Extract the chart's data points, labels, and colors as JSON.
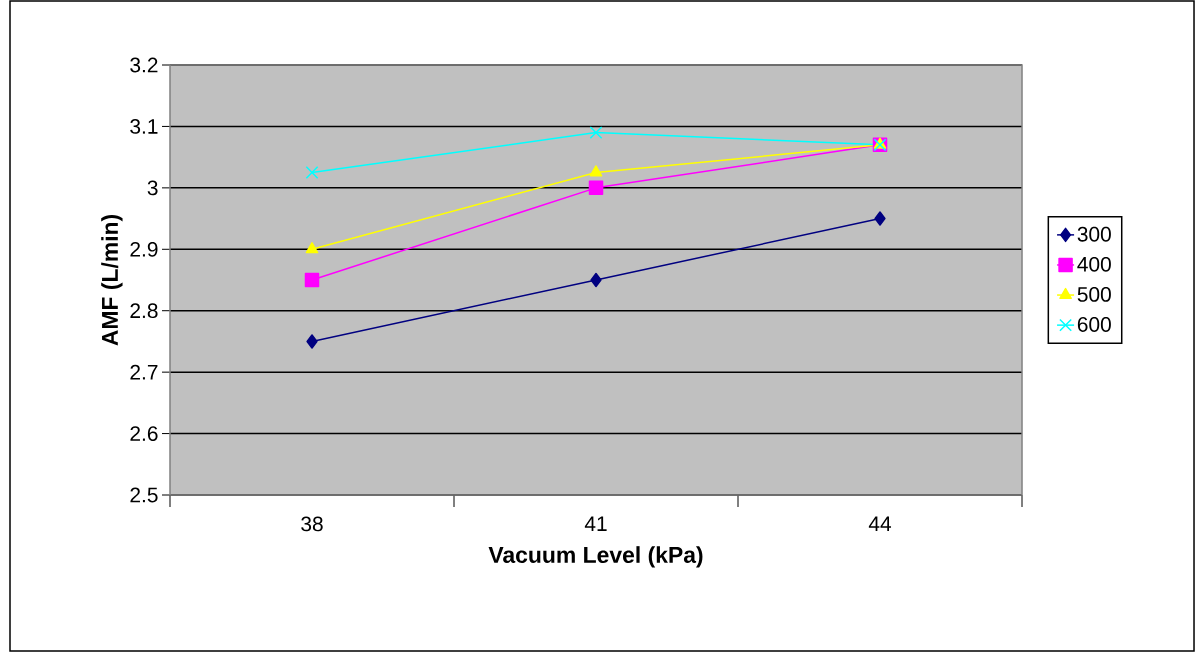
{
  "chart_data": {
    "type": "line",
    "xlabel": "Vacuum Level (kPa)",
    "ylabel": "AMF (L/min)",
    "categories": [
      "38",
      "41",
      "44"
    ],
    "series": [
      {
        "name": "300",
        "color": "#000080",
        "marker": "diamond",
        "values": [
          2.75,
          2.85,
          2.95
        ]
      },
      {
        "name": "400",
        "color": "#ff00ff",
        "marker": "square",
        "values": [
          2.85,
          3.0,
          3.07
        ]
      },
      {
        "name": "500",
        "color": "#ffff00",
        "marker": "triangle",
        "values": [
          2.9,
          3.025,
          3.07
        ]
      },
      {
        "name": "600",
        "color": "#00ffff",
        "marker": "cross",
        "values": [
          3.025,
          3.09,
          3.07
        ]
      }
    ],
    "ylim": [
      2.5,
      3.2
    ],
    "yticks": [
      2.5,
      2.6,
      2.7,
      2.8,
      2.9,
      3,
      3.1,
      3.2
    ],
    "grid": "y",
    "legend": "right"
  }
}
